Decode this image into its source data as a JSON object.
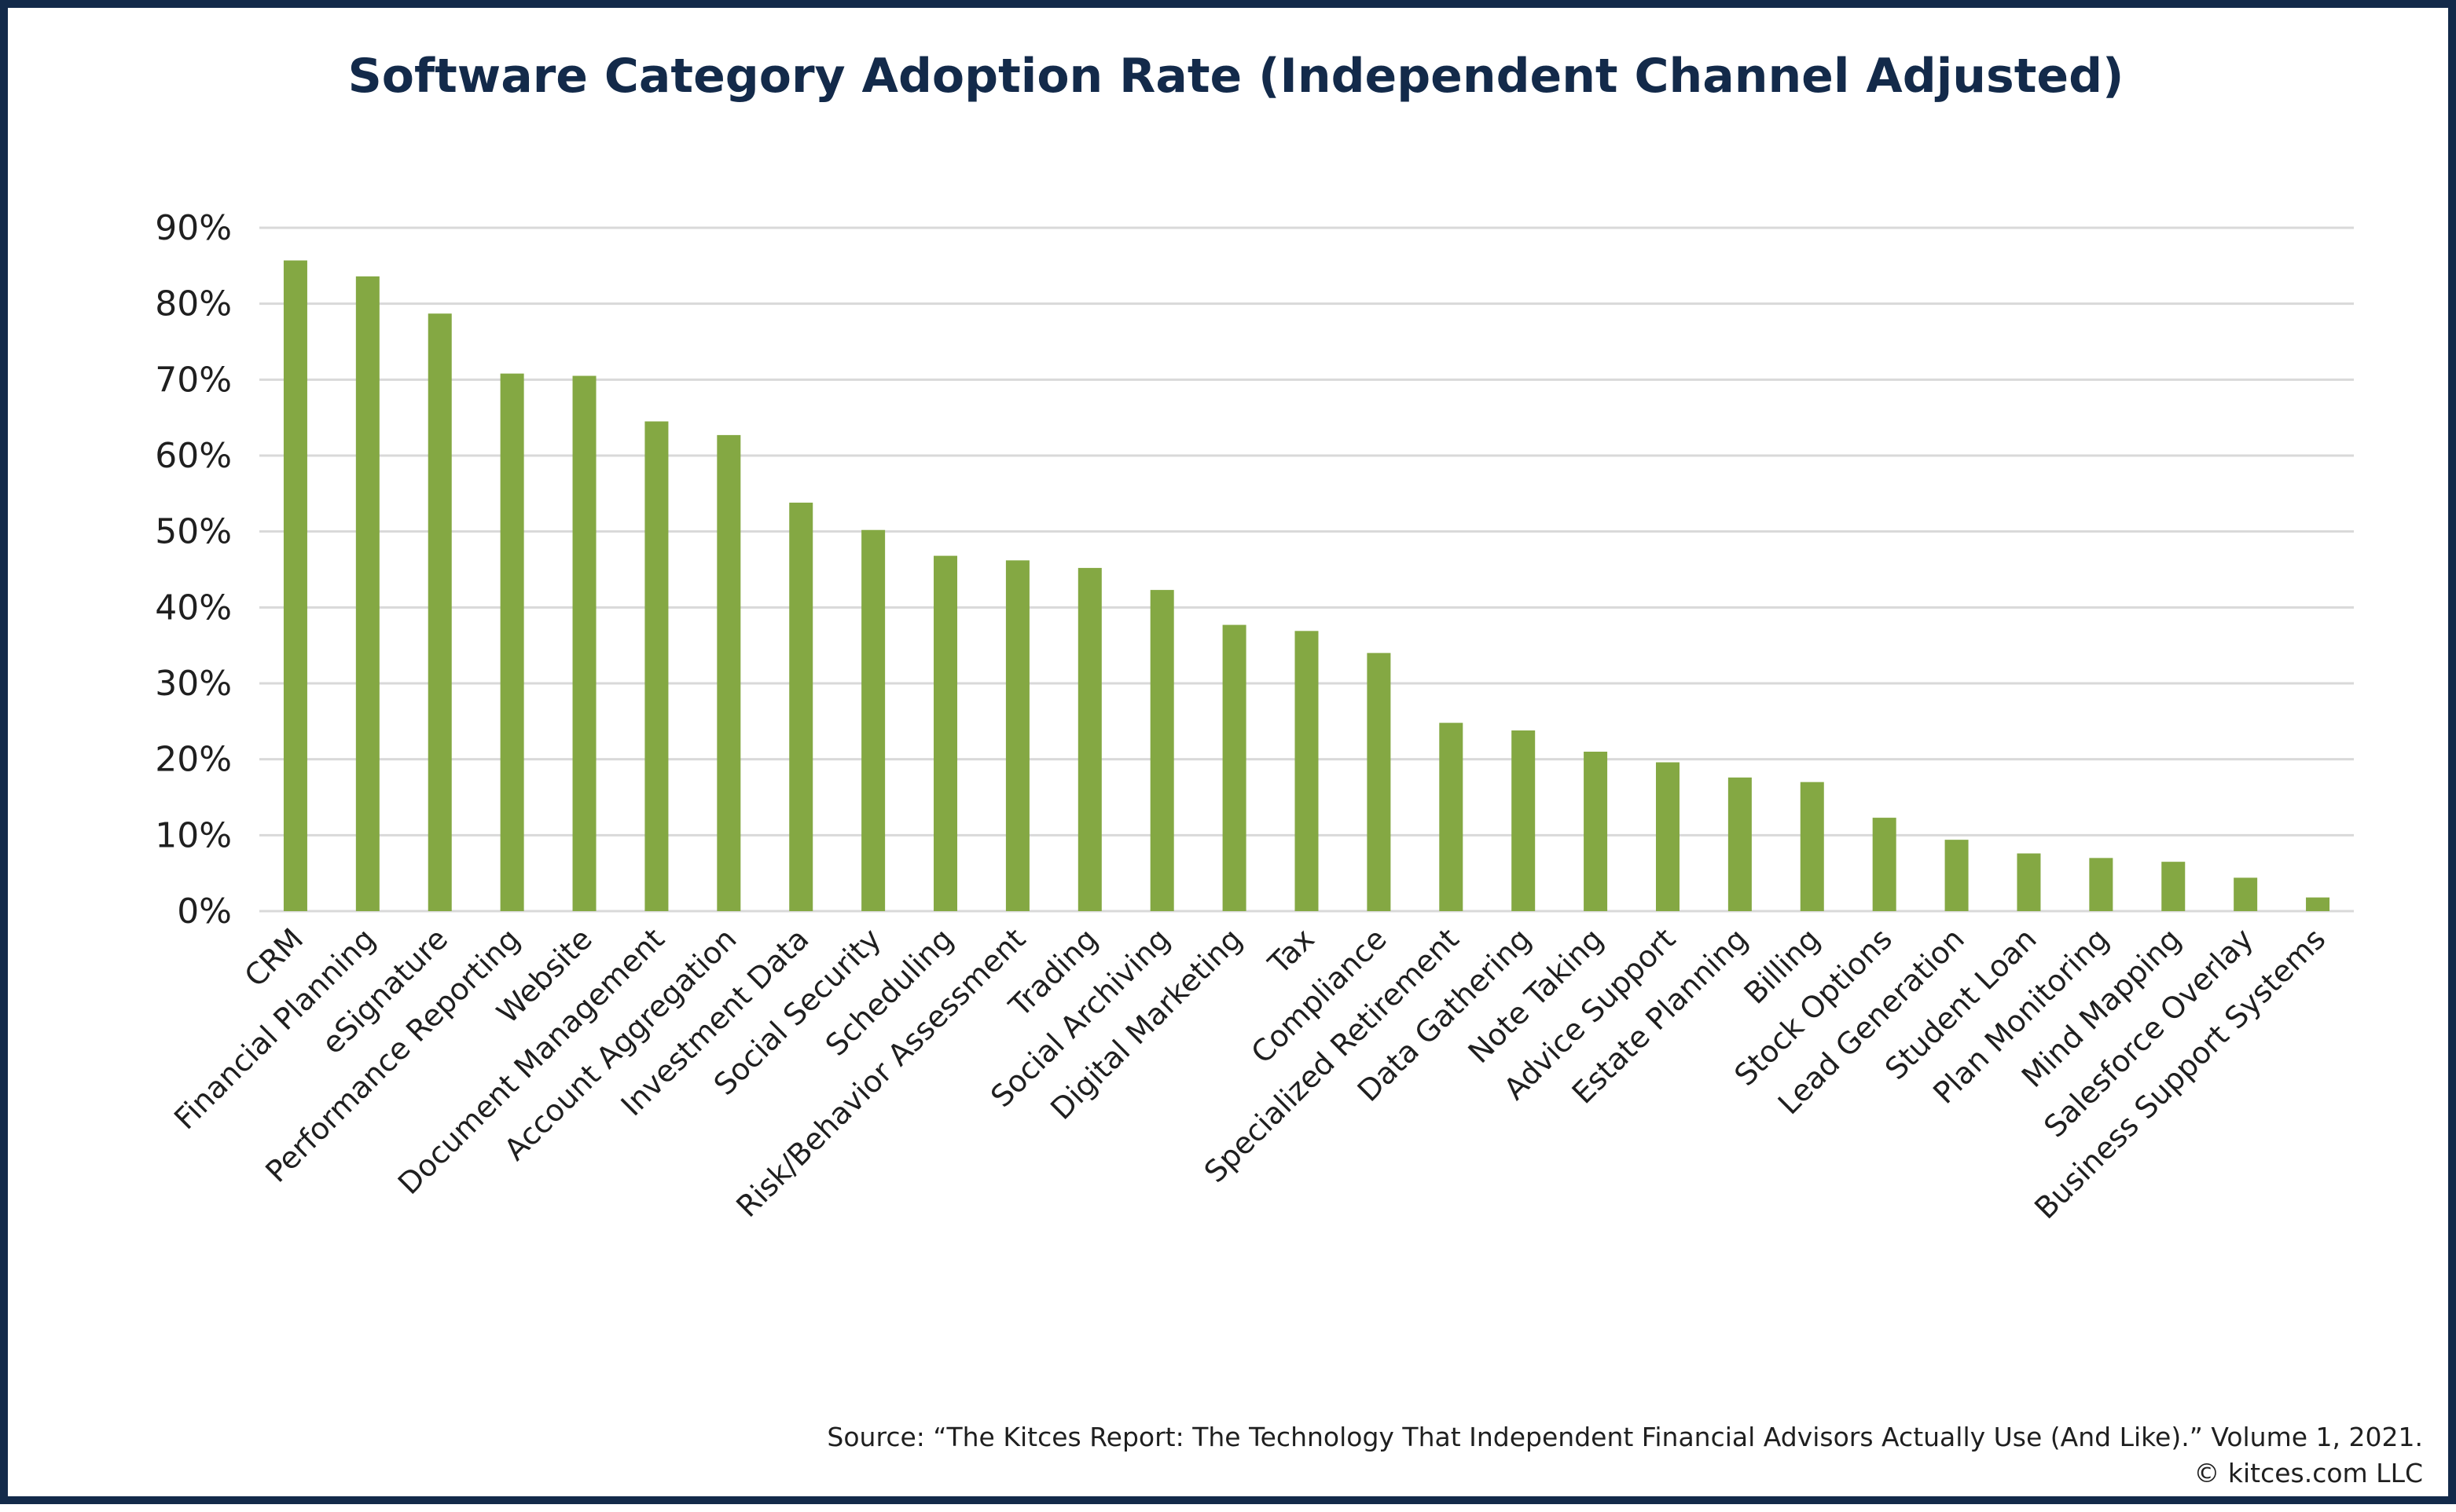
{
  "chart_data": {
    "type": "bar",
    "title": "Software Category Adoption Rate (Independent Channel Adjusted)",
    "xlabel": "",
    "ylabel": "",
    "ylim": [
      0,
      90
    ],
    "yticks": [
      "0%",
      "10%",
      "20%",
      "30%",
      "40%",
      "50%",
      "60%",
      "70%",
      "80%",
      "90%"
    ],
    "grid": true,
    "bar_color": "#84a843",
    "grid_color": "#d9d9d9",
    "categories": [
      "CRM",
      "Financial Planning",
      "eSignature",
      "Performance Reporting",
      "Website",
      "Document Management",
      "Account Aggregation",
      "Investment Data",
      "Social Security",
      "Scheduling",
      "Risk/Behavior Assessment",
      "Trading",
      "Social Archiving",
      "Digital Marketing",
      "Tax",
      "Compliance",
      "Specialized Retirement",
      "Data Gathering",
      "Note Taking",
      "Advice Support",
      "Estate Planning",
      "Billing",
      "Stock Options",
      "Lead Generation",
      "Student Loan",
      "Plan Monitoring",
      "Mind Mapping",
      "Salesforce Overlay",
      "Business Support Systems"
    ],
    "values": [
      85.7,
      83.6,
      78.7,
      70.8,
      70.5,
      64.5,
      62.7,
      53.8,
      50.2,
      46.8,
      46.2,
      45.2,
      42.3,
      37.7,
      36.9,
      34.0,
      24.8,
      23.8,
      21.0,
      19.6,
      17.6,
      17.0,
      12.3,
      9.4,
      7.6,
      7.0,
      6.5,
      4.4,
      1.8
    ]
  },
  "source_line": "Source: “The Kitces Report: The Technology That Independent Financial Advisors Actually Use (And Like).” Volume 1, 2021.",
  "copyright_line": "© kitces.com LLC",
  "frame_color": "#132a4a"
}
